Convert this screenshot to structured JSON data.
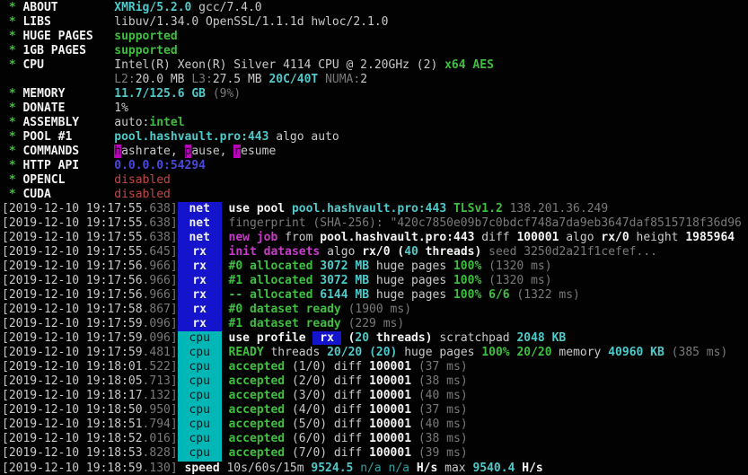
{
  "terminal": {
    "app": "XMRig miner console",
    "palette": {
      "bg": "#020202",
      "fg": "#c9c9c9",
      "fg_bold": "#f2f2f2",
      "dim": "#7a7a7a",
      "green": "#3fbf3f",
      "cyan": "#4fc9c9",
      "cyan_dim": "#2fa0a0",
      "red": "#c04848",
      "magenta": "#c93cc9",
      "blue": "#4848dd",
      "badge_blue_bg": "#1414cc",
      "badge_cyan_bg": "#00b7b7",
      "badge_cyan_fg": "#002020",
      "hl_bg": "#bb00bb",
      "hl_fg": "#110011"
    },
    "lines": [
      {
        "name": "about-line",
        "segments": [
          [
            "g",
            " * "
          ],
          [
            "wb",
            "ABOUT"
          ],
          [
            "w",
            "        "
          ],
          [
            "c",
            "XMRig/5.2.0"
          ],
          [
            "w",
            " gcc/7.4.0"
          ]
        ]
      },
      {
        "name": "libs-line",
        "segments": [
          [
            "g",
            " * "
          ],
          [
            "wb",
            "LIBS"
          ],
          [
            "w",
            "         "
          ],
          [
            "w",
            "libuv/1.34.0 OpenSSL/1.1.1d hwloc/2.1.0"
          ]
        ]
      },
      {
        "name": "huge-pages-line",
        "segments": [
          [
            "g",
            " * "
          ],
          [
            "wb",
            "HUGE PAGES"
          ],
          [
            "w",
            "   "
          ],
          [
            "g",
            "supported"
          ]
        ]
      },
      {
        "name": "1gb-pages-line",
        "segments": [
          [
            "g",
            " * "
          ],
          [
            "wb",
            "1GB PAGES"
          ],
          [
            "w",
            "    "
          ],
          [
            "g",
            "supported"
          ]
        ]
      },
      {
        "name": "cpu-line",
        "segments": [
          [
            "g",
            " * "
          ],
          [
            "wb",
            "CPU"
          ],
          [
            "w",
            "          "
          ],
          [
            "w",
            "Intel(R) Xeon(R) Silver 4114 CPU @ 2.20GHz (2) "
          ],
          [
            "g",
            "x64 AES"
          ]
        ]
      },
      {
        "name": "cpu-cache-line",
        "segments": [
          [
            "w",
            "                "
          ],
          [
            "d",
            "L2:"
          ],
          [
            "w",
            "20.0 MB "
          ],
          [
            "d",
            "L3:"
          ],
          [
            "w",
            "27.5 MB "
          ],
          [
            "c",
            "20C/40T"
          ],
          [
            "d",
            " NUMA:"
          ],
          [
            "w",
            "2"
          ]
        ]
      },
      {
        "name": "memory-line",
        "segments": [
          [
            "g",
            " * "
          ],
          [
            "wb",
            "MEMORY"
          ],
          [
            "w",
            "       "
          ],
          [
            "c",
            "11.7/125.6 GB"
          ],
          [
            "d",
            " (9%)"
          ]
        ]
      },
      {
        "name": "donate-line",
        "segments": [
          [
            "g",
            " * "
          ],
          [
            "wb",
            "DONATE"
          ],
          [
            "w",
            "       "
          ],
          [
            "w",
            "1%"
          ]
        ]
      },
      {
        "name": "assembly-line",
        "segments": [
          [
            "g",
            " * "
          ],
          [
            "wb",
            "ASSEMBLY"
          ],
          [
            "w",
            "     "
          ],
          [
            "w",
            "auto:"
          ],
          [
            "g",
            "intel"
          ]
        ]
      },
      {
        "name": "pool-line",
        "segments": [
          [
            "g",
            " * "
          ],
          [
            "wb",
            "POOL #1"
          ],
          [
            "w",
            "      "
          ],
          [
            "c",
            "pool.hashvault.pro:443"
          ],
          [
            "w",
            " algo auto"
          ]
        ]
      },
      {
        "name": "commands-line",
        "segments": [
          [
            "g",
            " * "
          ],
          [
            "wb",
            "COMMANDS"
          ],
          [
            "w",
            "     "
          ],
          [
            "hl",
            "h"
          ],
          [
            "w",
            "ashrate, "
          ],
          [
            "hl",
            "p"
          ],
          [
            "w",
            "ause, "
          ],
          [
            "hl",
            "r"
          ],
          [
            "w",
            "esume"
          ]
        ]
      },
      {
        "name": "http-api-line",
        "segments": [
          [
            "g",
            " * "
          ],
          [
            "wb",
            "HTTP API"
          ],
          [
            "w",
            "     "
          ],
          [
            "b",
            "0.0.0.0:54294"
          ]
        ]
      },
      {
        "name": "opencl-line",
        "segments": [
          [
            "g",
            " * "
          ],
          [
            "wb",
            "OPENCL"
          ],
          [
            "w",
            "       "
          ],
          [
            "r",
            "disabled"
          ]
        ]
      },
      {
        "name": "cuda-line",
        "segments": [
          [
            "g",
            " * "
          ],
          [
            "wb",
            "CUDA"
          ],
          [
            "w",
            "         "
          ],
          [
            "r",
            "disabled"
          ]
        ]
      },
      {
        "name": "log-use-pool",
        "segments": [
          [
            "w",
            "[2019-12-10 19:17:55"
          ],
          [
            "d",
            ".638]"
          ],
          [
            "tagnet",
            "net"
          ],
          [
            "w",
            " "
          ],
          [
            "wb",
            "use pool "
          ],
          [
            "c",
            "pool.hashvault.pro:443"
          ],
          [
            "w",
            " "
          ],
          [
            "g",
            "TLSv1.2"
          ],
          [
            "d",
            " 138.201.36.249"
          ]
        ]
      },
      {
        "name": "log-fingerprint",
        "segments": [
          [
            "w",
            "[2019-12-10 19:17:55"
          ],
          [
            "d",
            ".638]"
          ],
          [
            "tagnet",
            "net"
          ],
          [
            "w",
            " "
          ],
          [
            "d",
            "fingerprint (SHA-256): \"420c7850e09b7c0bdcf748a7da9eb3647daf8515718f36d96"
          ]
        ]
      },
      {
        "name": "log-new-job",
        "segments": [
          [
            "w",
            "[2019-12-10 19:17:55"
          ],
          [
            "d",
            ".638]"
          ],
          [
            "tagnet",
            "net"
          ],
          [
            "w",
            " "
          ],
          [
            "m",
            "new job"
          ],
          [
            "w",
            " from "
          ],
          [
            "wb",
            "pool.hashvault.pro:443"
          ],
          [
            "w",
            " diff "
          ],
          [
            "wb",
            "100001"
          ],
          [
            "w",
            " algo "
          ],
          [
            "wb",
            "rx/0"
          ],
          [
            "w",
            " height "
          ],
          [
            "wb",
            "1985964"
          ]
        ]
      },
      {
        "name": "log-init-datasets",
        "segments": [
          [
            "w",
            "[2019-12-10 19:17:55"
          ],
          [
            "d",
            ".645]"
          ],
          [
            "tagnet",
            "rx"
          ],
          [
            "w",
            " "
          ],
          [
            "m",
            "init datasets"
          ],
          [
            "w",
            " algo "
          ],
          [
            "wb",
            "rx/0 ("
          ],
          [
            "c",
            "40"
          ],
          [
            "wb",
            " threads)"
          ],
          [
            "d",
            " seed 3250d2a21f1cefef..."
          ]
        ]
      },
      {
        "name": "log-alloc-0",
        "segments": [
          [
            "w",
            "[2019-12-10 19:17:56"
          ],
          [
            "d",
            ".966]"
          ],
          [
            "tagnet",
            "rx"
          ],
          [
            "w",
            " "
          ],
          [
            "g",
            "#0 allocated"
          ],
          [
            "c",
            " 3072 MB"
          ],
          [
            "w",
            " huge pages "
          ],
          [
            "g",
            "100%"
          ],
          [
            "d",
            " (1320 ms)"
          ]
        ]
      },
      {
        "name": "log-alloc-1",
        "segments": [
          [
            "w",
            "[2019-12-10 19:17:56"
          ],
          [
            "d",
            ".966]"
          ],
          [
            "tagnet",
            "rx"
          ],
          [
            "w",
            " "
          ],
          [
            "g",
            "#1 allocated"
          ],
          [
            "c",
            " 3072 MB"
          ],
          [
            "w",
            " huge pages "
          ],
          [
            "g",
            "100%"
          ],
          [
            "d",
            " (1320 ms)"
          ]
        ]
      },
      {
        "name": "log-alloc-total",
        "segments": [
          [
            "w",
            "[2019-12-10 19:17:56"
          ],
          [
            "d",
            ".966]"
          ],
          [
            "tagnet",
            "rx"
          ],
          [
            "w",
            " "
          ],
          [
            "g",
            "-- allocated"
          ],
          [
            "c",
            " 6144 MB"
          ],
          [
            "w",
            " huge pages "
          ],
          [
            "g",
            "100% 6/6"
          ],
          [
            "d",
            " (1322 ms)"
          ]
        ]
      },
      {
        "name": "log-dataset-ready-0",
        "segments": [
          [
            "w",
            "[2019-12-10 19:17:58"
          ],
          [
            "d",
            ".867]"
          ],
          [
            "tagnet",
            "rx"
          ],
          [
            "w",
            " "
          ],
          [
            "g",
            "#0 dataset ready"
          ],
          [
            "d",
            " (1900 ms)"
          ]
        ]
      },
      {
        "name": "log-dataset-ready-1",
        "segments": [
          [
            "w",
            "[2019-12-10 19:17:59"
          ],
          [
            "d",
            ".096]"
          ],
          [
            "tagnet",
            "rx"
          ],
          [
            "w",
            " "
          ],
          [
            "g",
            "#1 dataset ready"
          ],
          [
            "d",
            " (229 ms)"
          ]
        ]
      },
      {
        "name": "log-use-profile",
        "segments": [
          [
            "w",
            "[2019-12-10 19:17:59"
          ],
          [
            "d",
            ".096]"
          ],
          [
            "tagcpu",
            "cpu"
          ],
          [
            "w",
            " "
          ],
          [
            "wb",
            "use profile "
          ],
          [
            "bgblue",
            " rx "
          ],
          [
            "wb",
            " ("
          ],
          [
            "c",
            "20"
          ],
          [
            "wb",
            " threads)"
          ],
          [
            "w",
            " scratchpad "
          ],
          [
            "c",
            "2048 KB"
          ]
        ]
      },
      {
        "name": "log-ready",
        "segments": [
          [
            "w",
            "[2019-12-10 19:17:59"
          ],
          [
            "d",
            ".481]"
          ],
          [
            "tagcpu",
            "cpu"
          ],
          [
            "w",
            " "
          ],
          [
            "g",
            "READY"
          ],
          [
            "w",
            " threads "
          ],
          [
            "c",
            "20/20 (20)"
          ],
          [
            "w",
            " huge pages "
          ],
          [
            "g",
            "100% 20/20"
          ],
          [
            "w",
            " memory "
          ],
          [
            "c",
            "40960 KB"
          ],
          [
            "d",
            " (385 ms)"
          ]
        ]
      },
      {
        "name": "log-accepted-1",
        "segments": [
          [
            "w",
            "[2019-12-10 19:18:01"
          ],
          [
            "d",
            ".522]"
          ],
          [
            "tagcpu",
            "cpu"
          ],
          [
            "w",
            " "
          ],
          [
            "g",
            "accepted"
          ],
          [
            "w",
            " (1/0) diff "
          ],
          [
            "wb",
            "100001"
          ],
          [
            "d",
            " (37 ms)"
          ]
        ]
      },
      {
        "name": "log-accepted-2",
        "segments": [
          [
            "w",
            "[2019-12-10 19:18:05"
          ],
          [
            "d",
            ".713]"
          ],
          [
            "tagcpu",
            "cpu"
          ],
          [
            "w",
            " "
          ],
          [
            "g",
            "accepted"
          ],
          [
            "w",
            " (2/0) diff "
          ],
          [
            "wb",
            "100001"
          ],
          [
            "d",
            " (38 ms)"
          ]
        ]
      },
      {
        "name": "log-accepted-3",
        "segments": [
          [
            "w",
            "[2019-12-10 19:18:17"
          ],
          [
            "d",
            ".132]"
          ],
          [
            "tagcpu",
            "cpu"
          ],
          [
            "w",
            " "
          ],
          [
            "g",
            "accepted"
          ],
          [
            "w",
            " (3/0) diff "
          ],
          [
            "wb",
            "100001"
          ],
          [
            "d",
            " (40 ms)"
          ]
        ]
      },
      {
        "name": "log-accepted-4",
        "segments": [
          [
            "w",
            "[2019-12-10 19:18:50"
          ],
          [
            "d",
            ".950]"
          ],
          [
            "tagcpu",
            "cpu"
          ],
          [
            "w",
            " "
          ],
          [
            "g",
            "accepted"
          ],
          [
            "w",
            " (4/0) diff "
          ],
          [
            "wb",
            "100001"
          ],
          [
            "d",
            " (37 ms)"
          ]
        ]
      },
      {
        "name": "log-accepted-5",
        "segments": [
          [
            "w",
            "[2019-12-10 19:18:51"
          ],
          [
            "d",
            ".794]"
          ],
          [
            "tagcpu",
            "cpu"
          ],
          [
            "w",
            " "
          ],
          [
            "g",
            "accepted"
          ],
          [
            "w",
            " (5/0) diff "
          ],
          [
            "wb",
            "100001"
          ],
          [
            "d",
            " (40 ms)"
          ]
        ]
      },
      {
        "name": "log-accepted-6",
        "segments": [
          [
            "w",
            "[2019-12-10 19:18:52"
          ],
          [
            "d",
            ".016]"
          ],
          [
            "tagcpu",
            "cpu"
          ],
          [
            "w",
            " "
          ],
          [
            "g",
            "accepted"
          ],
          [
            "w",
            " (6/0) diff "
          ],
          [
            "wb",
            "100001"
          ],
          [
            "d",
            " (38 ms)"
          ]
        ]
      },
      {
        "name": "log-accepted-7",
        "segments": [
          [
            "w",
            "[2019-12-10 19:18:53"
          ],
          [
            "d",
            ".828]"
          ],
          [
            "tagcpu",
            "cpu"
          ],
          [
            "w",
            " "
          ],
          [
            "g",
            "accepted"
          ],
          [
            "w",
            " (7/0) diff "
          ],
          [
            "wb",
            "100001"
          ],
          [
            "d",
            " (39 ms)"
          ]
        ]
      },
      {
        "name": "log-speed",
        "segments": [
          [
            "w",
            "[2019-12-10 19:18:59"
          ],
          [
            "d",
            ".130]"
          ],
          [
            "w",
            " "
          ],
          [
            "wb",
            "speed"
          ],
          [
            "w",
            " 10s/60s/15m "
          ],
          [
            "c",
            "9524.5"
          ],
          [
            "cd",
            " n/a n/a "
          ],
          [
            "wb",
            "H/s"
          ],
          [
            "w",
            " max "
          ],
          [
            "c",
            "9540.4"
          ],
          [
            "wb",
            " H/s"
          ]
        ]
      }
    ]
  }
}
